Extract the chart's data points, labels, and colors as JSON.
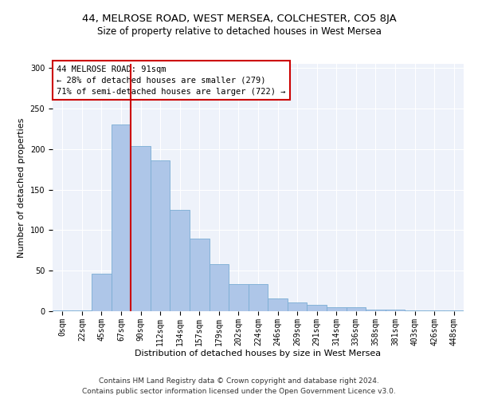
{
  "title1": "44, MELROSE ROAD, WEST MERSEA, COLCHESTER, CO5 8JA",
  "title2": "Size of property relative to detached houses in West Mersea",
  "xlabel": "Distribution of detached houses by size in West Mersea",
  "ylabel": "Number of detached properties",
  "footer1": "Contains HM Land Registry data © Crown copyright and database right 2024.",
  "footer2": "Contains public sector information licensed under the Open Government Licence v3.0.",
  "annotation_title": "44 MELROSE ROAD: 91sqm",
  "annotation_line1": "← 28% of detached houses are smaller (279)",
  "annotation_line2": "71% of semi-detached houses are larger (722) →",
  "bar_categories": [
    "0sqm",
    "22sqm",
    "45sqm",
    "67sqm",
    "90sqm",
    "112sqm",
    "134sqm",
    "157sqm",
    "179sqm",
    "202sqm",
    "224sqm",
    "246sqm",
    "269sqm",
    "291sqm",
    "314sqm",
    "336sqm",
    "358sqm",
    "381sqm",
    "403sqm",
    "426sqm",
    "448sqm"
  ],
  "bar_values": [
    1,
    1,
    46,
    230,
    204,
    186,
    125,
    90,
    58,
    33,
    33,
    16,
    11,
    8,
    5,
    5,
    2,
    2,
    1,
    1,
    1
  ],
  "bar_color": "#aec6e8",
  "bar_edge_color": "#7aadd4",
  "vline_color": "#cc0000",
  "vline_x_index": 4,
  "ylim": [
    0,
    305
  ],
  "yticks": [
    0,
    50,
    100,
    150,
    200,
    250,
    300
  ],
  "background_color": "#ffffff",
  "plot_bg_color": "#eef2fa",
  "grid_color": "#ffffff",
  "annotation_box_color": "#ffffff",
  "annotation_box_edge_color": "#cc0000",
  "title1_fontsize": 9.5,
  "title2_fontsize": 8.5,
  "xlabel_fontsize": 8,
  "ylabel_fontsize": 8,
  "tick_fontsize": 7,
  "annotation_fontsize": 7.5,
  "footer_fontsize": 6.5
}
